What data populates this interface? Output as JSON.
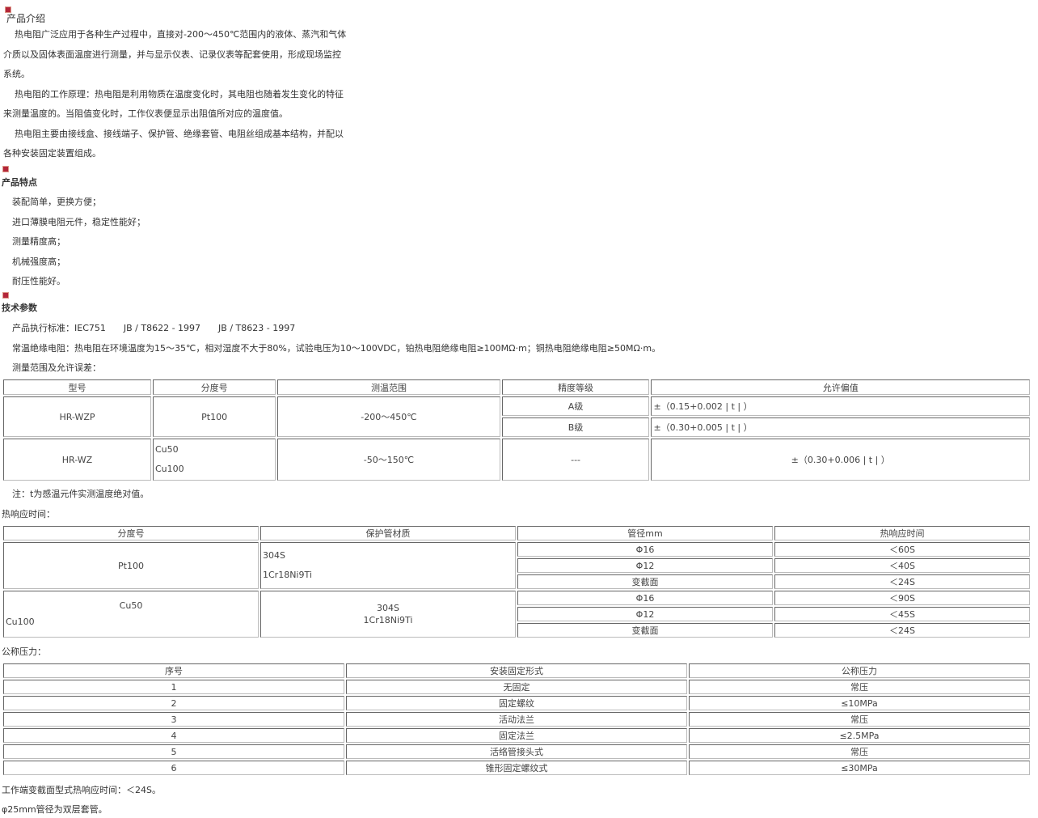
{
  "intro": {
    "title": "产品介绍",
    "lines": [
      "热电阻广泛应用于各种生产过程中，直接对-200～450℃范围内的液体、蒸汽和气体",
      "介质以及固体表面温度进行测量，并与显示仪表、记录仪表等配套使用，形成现场监控",
      "系统。",
      "热电阻的工作原理：热电阻是利用物质在温度变化时，其电阻也随着发生变化的特征",
      "来测量温度的。当阻值变化时，工作仪表便显示出阻值所对应的温度值。",
      "热电阻主要由接线盒、接线端子、保护管、绝缘套管、电阻丝组成基本结构，并配以",
      "各种安装固定装置组成。"
    ]
  },
  "features": {
    "title": "产品特点",
    "items": [
      "装配简单，更换方便；",
      "进口薄膜电阻元件，稳定性能好；",
      "测量精度高；",
      "机械强度高；",
      "耐压性能好。"
    ]
  },
  "tech": {
    "title": "技术参数",
    "lines": [
      "产品执行标准：IEC751　　JB / T8622 - 1997　　JB / T8623 - 1997",
      "常温绝缘电阻：热电阻在环境温度为15～35℃，相对湿度不大于80%，试验电压为10～100VDC，铂热电阻绝缘电阻≥100MΩ·m；铜热电阻绝缘电阻≥50MΩ·m。",
      "测量范围及允许误差："
    ]
  },
  "t1": {
    "headers": [
      "型号",
      "分度号",
      "测温范围",
      "精度等级",
      "允许偏值"
    ],
    "r1": {
      "model": "HR-WZP",
      "grad": "Pt100",
      "range": "-200～450℃",
      "a": "A级",
      "ad": "±（0.15+0.002 | t | ）",
      "b": "B级",
      "bd": "±（0.30+0.005 | t | ）"
    },
    "r2": {
      "model": "HR-WZ",
      "g1": "Cu50",
      "g2": "Cu100",
      "range": "-50～150℃",
      "acc": "---",
      "dev": "±（0.30+0.006 | t | ）"
    }
  },
  "note": "注：t为感温元件实测温度绝对值。",
  "resp_title": "热响应时间：",
  "t2": {
    "headers": [
      "分度号",
      "保护管材质",
      "管径mm",
      "热响应时间"
    ],
    "pt": {
      "grad": "Pt100",
      "m1": "304S",
      "m2": "1Cr18Ni9Ti",
      "rows": [
        [
          "Φ16",
          "＜60S"
        ],
        [
          "Φ12",
          "＜40S"
        ],
        [
          "变截面",
          "＜24S"
        ]
      ]
    },
    "cu": {
      "g1": "Cu50",
      "g2": "Cu100",
      "m1": "304S",
      "m2": "1Cr18Ni9Ti",
      "rows": [
        [
          "Φ16",
          "＜90S"
        ],
        [
          "Φ12",
          "＜45S"
        ],
        [
          "变截面",
          "＜24S"
        ]
      ]
    }
  },
  "press_title": "公称压力：",
  "t3": {
    "headers": [
      "序号",
      "安装固定形式",
      "公称压力"
    ],
    "rows": [
      [
        "1",
        "无固定",
        "常压"
      ],
      [
        "2",
        "固定螺纹",
        "≤10MPa"
      ],
      [
        "3",
        "活动法兰",
        "常压"
      ],
      [
        "4",
        "固定法兰",
        "≤2.5MPa"
      ],
      [
        "5",
        "活络管接头式",
        "常压"
      ],
      [
        "6",
        "锥形固定螺纹式",
        "≤30MPa"
      ]
    ]
  },
  "foot": [
    "工作端变截面型式热响应时间：＜24S。",
    "φ25mm管径为双层套管。"
  ]
}
